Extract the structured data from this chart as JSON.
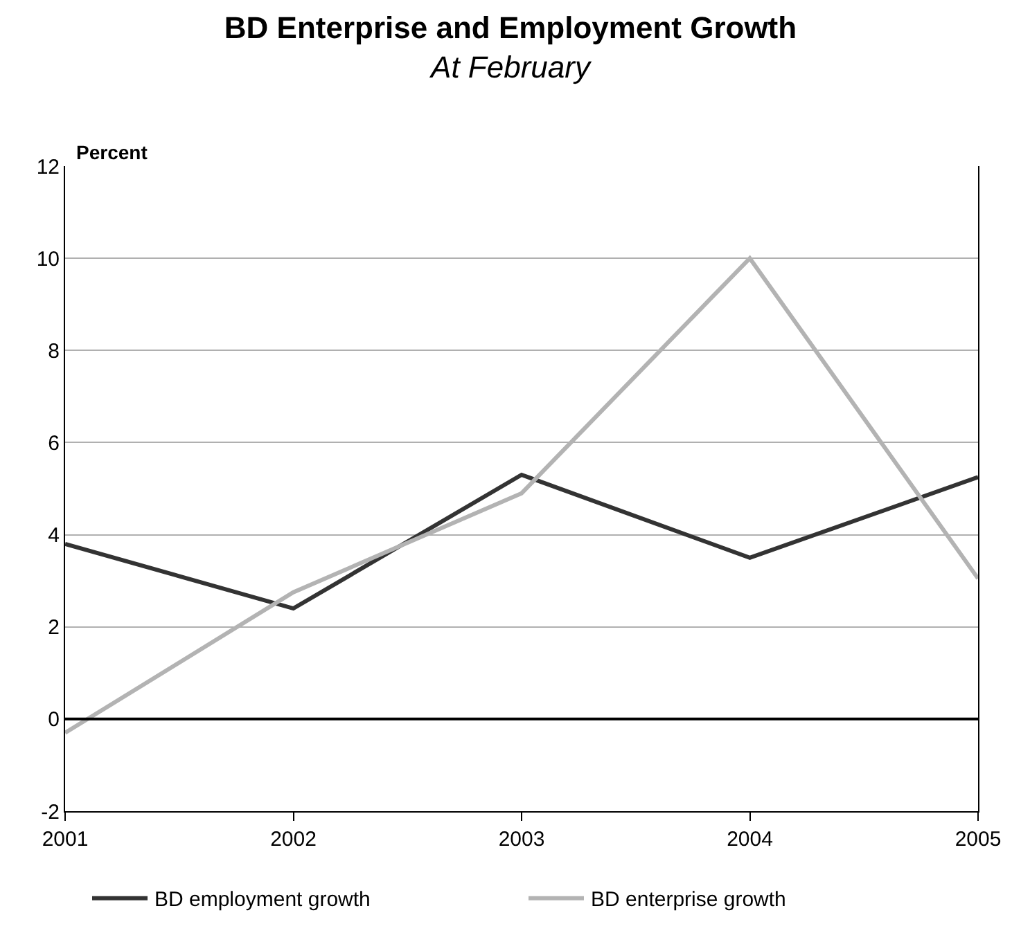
{
  "chart_data": {
    "type": "line",
    "title": "BD Enterprise and Employment Growth",
    "subtitle": "At February",
    "ylabel": "Percent",
    "x": [
      2001,
      2002,
      2003,
      2004,
      2005
    ],
    "series": [
      {
        "name": "BD employment growth",
        "color": "#333333",
        "values": [
          3.8,
          2.4,
          5.3,
          3.5,
          5.25
        ]
      },
      {
        "name": "BD enterprise growth",
        "color": "#b3b3b3",
        "values": [
          -0.3,
          2.75,
          4.9,
          10.0,
          3.05
        ]
      }
    ],
    "xlim": [
      2001,
      2005
    ],
    "xticks": [
      2001,
      2002,
      2003,
      2004,
      2005
    ],
    "ylim": [
      -2,
      12
    ],
    "yticks": [
      -2,
      0,
      2,
      4,
      6,
      8,
      10,
      12
    ],
    "ref_lines": [
      {
        "axis": "y",
        "value": 0,
        "color": "#000000"
      }
    ],
    "grid": "y",
    "legend": "bottom",
    "marker": "none",
    "line_style": "solid"
  }
}
